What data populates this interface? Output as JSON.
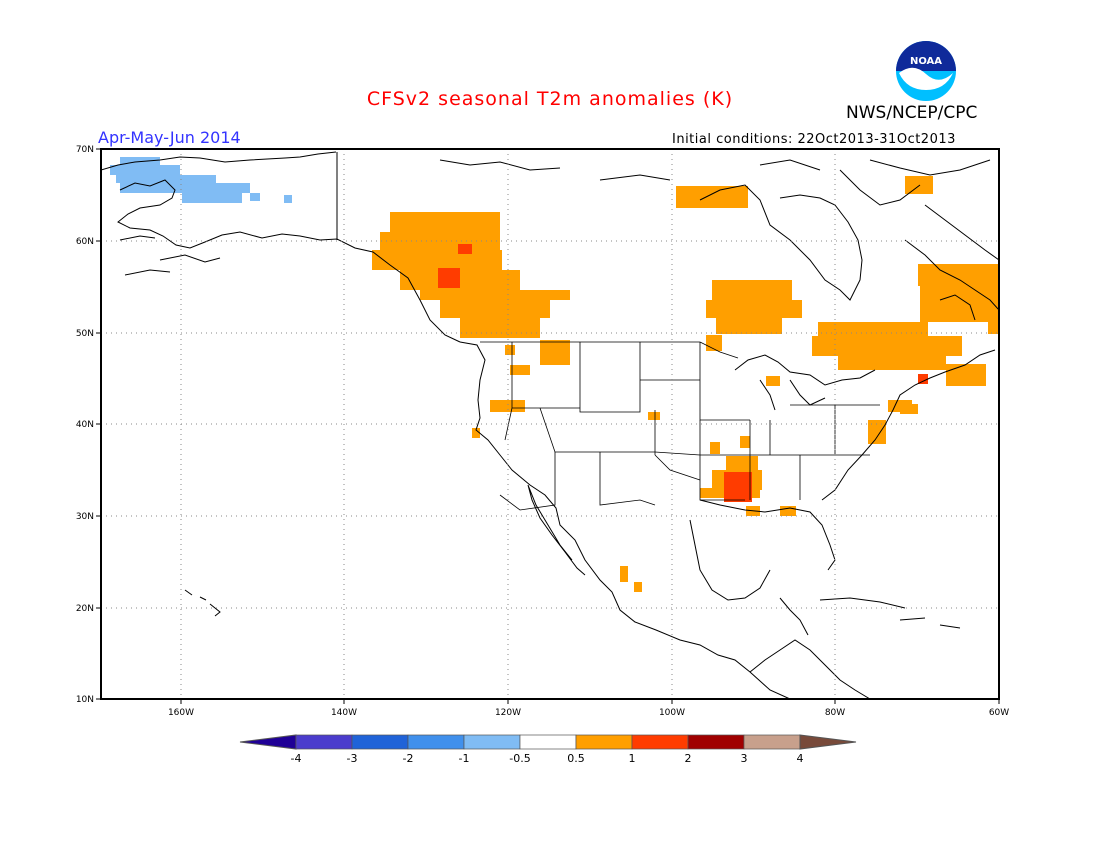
{
  "title": "CFSv2 seasonal T2m anomalies (K)",
  "agency": "NWS/NCEP/CPC",
  "logo_text": "NOAA",
  "period": "Apr-May-Jun 2014",
  "initial_conditions": "Initial conditions: 22Oct2013-31Oct2013",
  "lat_labels": [
    "70N",
    "60N",
    "50N",
    "40N",
    "30N",
    "20N",
    "10N"
  ],
  "lon_labels": [
    "160W",
    "140W",
    "120W",
    "100W",
    "80W",
    "60W"
  ],
  "colorbar": {
    "labels": [
      "-4",
      "-3",
      "-2",
      "-1",
      "-0.5",
      "0.5",
      "1",
      "2",
      "3",
      "4"
    ],
    "colors": [
      "#1f0096",
      "#4b3ccc",
      "#2063d8",
      "#4090ec",
      "#80bcf4",
      "#ffffff",
      "#ff9f00",
      "#ff3c00",
      "#a00000",
      "#c8a08c",
      "#784a3a"
    ]
  },
  "map_data": {
    "projection": "lat-lon",
    "lon_range": [
      -171,
      -60
    ],
    "lat_range": [
      10,
      70
    ],
    "anomaly_regions": [
      {
        "name": "Western Alaska cold anomaly",
        "category": "-1 to -0.5",
        "color": "#80bcf4"
      },
      {
        "name": "Northern British Columbia / Yukon warm anomaly",
        "category": "0.5 to 1",
        "color": "#ff9f00"
      },
      {
        "name": "Northern British Columbia hotspot",
        "category": "1 to 2",
        "color": "#ff3c00"
      },
      {
        "name": "Hudson Bay / Nunavut warm anomaly",
        "category": "0.5 to 1",
        "color": "#ff9f00"
      },
      {
        "name": "Manitoba / Northern Ontario warm anomaly",
        "category": "0.5 to 1",
        "color": "#ff9f00"
      },
      {
        "name": "Quebec / Labrador warm anomaly",
        "category": "0.5 to 1",
        "color": "#ff9f00"
      },
      {
        "name": "Lower Mississippi Valley warm anomaly",
        "category": "0.5 to 1",
        "color": "#ff9f00"
      },
      {
        "name": "Louisiana / Mississippi hotspot",
        "category": "1 to 2",
        "color": "#ff3c00"
      },
      {
        "name": "New England warm anomaly",
        "category": "0.5 to 1",
        "color": "#ff9f00"
      }
    ]
  }
}
